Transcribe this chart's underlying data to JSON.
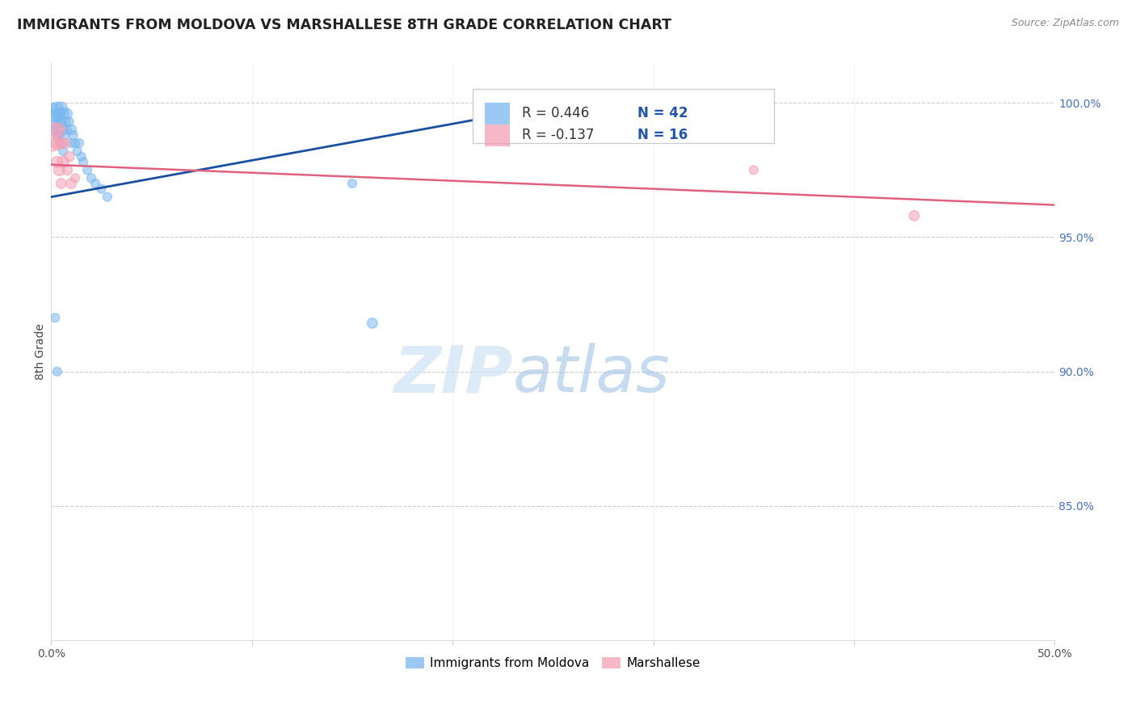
{
  "title": "IMMIGRANTS FROM MOLDOVA VS MARSHALLESE 8TH GRADE CORRELATION CHART",
  "source": "Source: ZipAtlas.com",
  "ylabel": "8th Grade",
  "ylabel_right_ticks": [
    "100.0%",
    "95.0%",
    "90.0%",
    "85.0%"
  ],
  "ylabel_right_vals": [
    1.0,
    0.95,
    0.9,
    0.85
  ],
  "xlim": [
    0.0,
    0.5
  ],
  "ylim": [
    0.8,
    1.015
  ],
  "legend_blue_r": "0.446",
  "legend_blue_n": "42",
  "legend_pink_r": "-0.137",
  "legend_pink_n": "16",
  "blue_color": "#7ab8f0",
  "pink_color": "#f4a0b5",
  "trend_blue_color": "#1a4fa0",
  "trend_pink_color": "#e06080",
  "blue_scatter_x": [
    0.001,
    0.001,
    0.002,
    0.002,
    0.002,
    0.003,
    0.003,
    0.003,
    0.004,
    0.004,
    0.004,
    0.005,
    0.005,
    0.005,
    0.006,
    0.006,
    0.006,
    0.007,
    0.007,
    0.008,
    0.008,
    0.009,
    0.01,
    0.01,
    0.011,
    0.012,
    0.013,
    0.014,
    0.015,
    0.016,
    0.018,
    0.02,
    0.022,
    0.025,
    0.028,
    0.15,
    0.16,
    0.22,
    0.235,
    0.25,
    0.002,
    0.003
  ],
  "blue_scatter_y": [
    0.998,
    0.996,
    0.995,
    0.992,
    0.99,
    0.998,
    0.995,
    0.988,
    0.996,
    0.993,
    0.988,
    0.998,
    0.993,
    0.985,
    0.996,
    0.99,
    0.982,
    0.993,
    0.988,
    0.996,
    0.99,
    0.993,
    0.99,
    0.985,
    0.988,
    0.985,
    0.982,
    0.985,
    0.98,
    0.978,
    0.975,
    0.972,
    0.97,
    0.968,
    0.965,
    0.97,
    0.918,
    0.998,
    0.998,
    0.998,
    0.92,
    0.9
  ],
  "blue_scatter_size": [
    80,
    60,
    100,
    80,
    60,
    120,
    80,
    60,
    100,
    80,
    60,
    120,
    80,
    60,
    100,
    80,
    60,
    80,
    60,
    80,
    60,
    60,
    80,
    60,
    60,
    60,
    60,
    60,
    60,
    60,
    60,
    60,
    60,
    60,
    60,
    60,
    80,
    80,
    80,
    80,
    60,
    60
  ],
  "pink_scatter_x": [
    0.001,
    0.002,
    0.003,
    0.003,
    0.004,
    0.004,
    0.005,
    0.005,
    0.006,
    0.007,
    0.008,
    0.009,
    0.01,
    0.012,
    0.35,
    0.43
  ],
  "pink_scatter_y": [
    0.985,
    0.99,
    0.985,
    0.978,
    0.99,
    0.975,
    0.985,
    0.97,
    0.978,
    0.985,
    0.975,
    0.98,
    0.97,
    0.972,
    0.975,
    0.958
  ],
  "pink_scatter_size": [
    200,
    150,
    120,
    100,
    120,
    100,
    100,
    80,
    100,
    80,
    80,
    80,
    80,
    60,
    60,
    80
  ],
  "blue_trend_x0": 0.0,
  "blue_trend_y0": 0.965,
  "blue_trend_x1": 0.25,
  "blue_trend_y1": 0.999,
  "pink_trend_x0": 0.0,
  "pink_trend_y0": 0.977,
  "pink_trend_x1": 0.5,
  "pink_trend_y1": 0.962
}
